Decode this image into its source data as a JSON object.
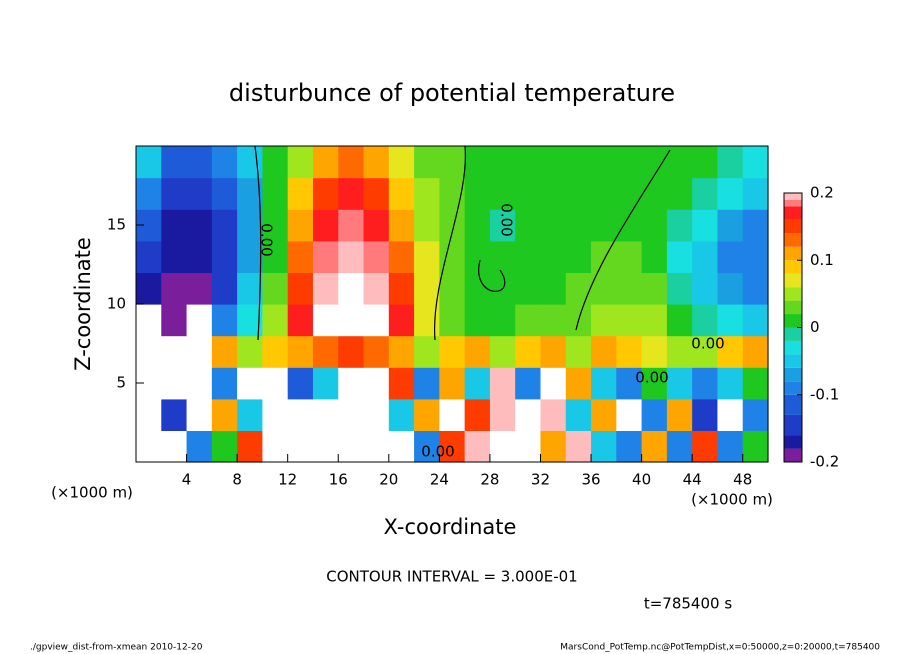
{
  "chart_data": {
    "type": "heatmap",
    "title": "disturbunce of potential temperature",
    "xlabel": "X-coordinate",
    "ylabel": "Z-coordinate",
    "xunit_left": "(×1000 m)",
    "xunit_right": "(×1000 m)",
    "contour_interval": "CONTOUR INTERVAL = 3.000E-01",
    "time": "t=785400 s",
    "footer_left": "./gpview_dist-from-xmean  2010-12-20",
    "footer_right": "MarsCond_PotTemp.nc@PotTempDist,x=0:50000,z=0:20000,t=785400",
    "contour_labels": [
      "0.00",
      "0.00",
      "0.00",
      "0.00",
      "0.00"
    ],
    "xlim": [
      0,
      50
    ],
    "xticks": [
      4,
      8,
      12,
      16,
      20,
      24,
      28,
      32,
      36,
      40,
      44,
      48
    ],
    "ylim": [
      0,
      20
    ],
    "yticks": [
      5,
      10,
      15
    ],
    "clim": [
      -0.2,
      0.2
    ],
    "cticks": [
      -0.2,
      -0.1,
      0,
      0.1,
      0.2
    ],
    "above_color": "#ffffff",
    "colormap": [
      {
        "value": -0.2,
        "color": "#7a1e9c"
      },
      {
        "value": -0.18,
        "color": "#1a1aa0"
      },
      {
        "value": -0.16,
        "color": "#1e3cc8"
      },
      {
        "value": -0.13,
        "color": "#1e5bd8"
      },
      {
        "value": -0.1,
        "color": "#1e82e6"
      },
      {
        "value": -0.08,
        "color": "#1aa0e0"
      },
      {
        "value": -0.06,
        "color": "#19c8e6"
      },
      {
        "value": -0.04,
        "color": "#19e0e0"
      },
      {
        "value": -0.02,
        "color": "#1ad0a0"
      },
      {
        "value": 0,
        "color": "#1ec81e"
      },
      {
        "value": 0.02,
        "color": "#64d81e"
      },
      {
        "value": 0.04,
        "color": "#a0e61e"
      },
      {
        "value": 0.06,
        "color": "#e6e61e"
      },
      {
        "value": 0.08,
        "color": "#ffc800"
      },
      {
        "value": 0.1,
        "color": "#ffa500"
      },
      {
        "value": 0.12,
        "color": "#ff6a00"
      },
      {
        "value": 0.14,
        "color": "#ff3c00"
      },
      {
        "value": 0.16,
        "color": "#ff1e1e"
      },
      {
        "value": 0.18,
        "color": "#ff7a7a"
      },
      {
        "value": 0.19,
        "color": "#ffbcbc"
      }
    ],
    "x": [
      1,
      3,
      5,
      7,
      9,
      11,
      13,
      15,
      17,
      19,
      21,
      23,
      25,
      27,
      29,
      31,
      33,
      35,
      37,
      39,
      41,
      43,
      45,
      47,
      49
    ],
    "z": [
      1,
      3,
      5,
      7,
      9,
      11,
      13,
      15,
      17,
      19
    ],
    "values": [
      [
        0.25,
        0.25,
        -0.1,
        0.0,
        0.15,
        0.25,
        0.25,
        0.25,
        0.25,
        0.25,
        0.25,
        -0.1,
        0.15,
        0.2,
        0.25,
        0.25,
        0.1,
        0.2,
        -0.05,
        -0.1,
        0.1,
        -0.1,
        0.15,
        -0.1,
        0.0
      ],
      [
        0.25,
        -0.15,
        0.25,
        0.1,
        -0.05,
        0.25,
        0.25,
        0.25,
        0.25,
        0.25,
        -0.05,
        0.1,
        0.22,
        0.15,
        0.2,
        0.25,
        0.2,
        -0.05,
        0.1,
        0.25,
        -0.1,
        0.1,
        -0.15,
        0.25,
        -0.1
      ],
      [
        0.25,
        0.22,
        0.25,
        -0.1,
        0.25,
        0.22,
        -0.12,
        -0.05,
        0.25,
        0.25,
        0.15,
        -0.1,
        0.1,
        -0.05,
        0.2,
        -0.1,
        0.25,
        0.1,
        -0.05,
        -0.1,
        0.0,
        -0.05,
        -0.1,
        -0.05,
        0
      ],
      [
        0.25,
        0.25,
        0.25,
        0.1,
        0.05,
        0.08,
        0.1,
        0.12,
        0.14,
        0.12,
        0.1,
        0.05,
        0.08,
        0.1,
        0.05,
        0.08,
        0.1,
        0.05,
        0.1,
        0.08,
        0.06,
        0.05,
        0.05,
        0.08,
        0.1
      ],
      [
        0.25,
        -0.2,
        0.22,
        -0.1,
        -0.03,
        0.05,
        0.17,
        0.23,
        0.25,
        0.23,
        0.17,
        0.07,
        0.03,
        0.01,
        0.01,
        0.02,
        0.02,
        0.03,
        0.04,
        0.05,
        0.04,
        0.01,
        -0.02,
        -0.04,
        -0.05
      ],
      [
        -0.17,
        -0.19,
        -0.19,
        -0.14,
        -0.06,
        0.02,
        0.14,
        0.2,
        0.22,
        0.2,
        0.15,
        0.06,
        0.02,
        0,
        0.01,
        0.01,
        0.01,
        0.02,
        0.03,
        0.03,
        0.02,
        -0.02,
        -0.05,
        -0.08,
        -0.1
      ],
      [
        -0.15,
        -0.18,
        -0.18,
        -0.14,
        -0.07,
        0.01,
        0.12,
        0.18,
        0.2,
        0.18,
        0.13,
        0.06,
        0.02,
        0,
        0,
        0,
        0.01,
        0.01,
        0.02,
        0.02,
        0,
        -0.03,
        -0.06,
        -0.09,
        -0.1
      ],
      [
        -0.13,
        -0.17,
        -0.17,
        -0.14,
        -0.07,
        0,
        0.1,
        0.16,
        0.18,
        0.16,
        0.11,
        0.05,
        0.02,
        0,
        -0.01,
        0,
        0,
        0.01,
        0.01,
        0.01,
        0,
        -0.02,
        -0.04,
        -0.07,
        -0.09
      ],
      [
        -0.1,
        -0.15,
        -0.16,
        -0.13,
        -0.07,
        0,
        0.08,
        0.14,
        0.16,
        0.14,
        0.09,
        0.04,
        0.02,
        0.01,
        0,
        0,
        0,
        0,
        0.01,
        0.01,
        0.01,
        0,
        -0.02,
        -0.04,
        -0.06
      ],
      [
        -0.05,
        -0.12,
        -0.13,
        -0.1,
        -0.05,
        0.0,
        0.05,
        0.1,
        0.12,
        0.1,
        0.07,
        0.03,
        0.02,
        0.01,
        0,
        0,
        0.01,
        0.0,
        0,
        0,
        0.01,
        0.01,
        0.0,
        -0.02,
        -0.04
      ]
    ]
  }
}
